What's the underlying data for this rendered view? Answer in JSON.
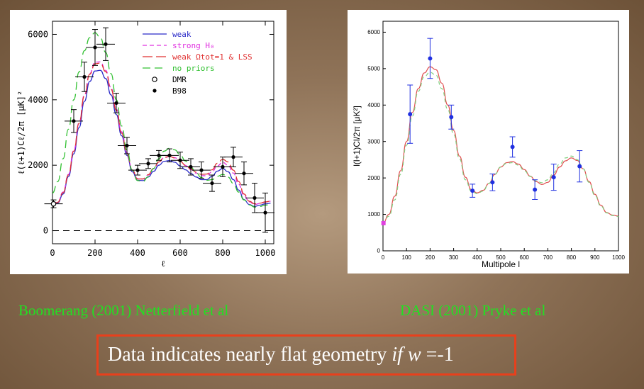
{
  "chart_data": [
    {
      "type": "line",
      "xlabel": "ℓ",
      "ylabel": "ℓ(ℓ+1)Cℓ/2π  [μK]²",
      "xlim": [
        0,
        1040
      ],
      "ylim": [
        -400,
        6400
      ],
      "xticks": [
        0,
        200,
        400,
        600,
        800,
        1000
      ],
      "yticks": [
        0,
        2000,
        4000,
        6000
      ],
      "grid": false,
      "legend_position": "top-right",
      "series": [
        {
          "name": "weak",
          "color": "#2b2bc8",
          "dash": "solid",
          "x": [
            0,
            25,
            50,
            75,
            100,
            125,
            150,
            175,
            200,
            225,
            250,
            275,
            300,
            325,
            350,
            375,
            400,
            425,
            450,
            475,
            500,
            525,
            550,
            575,
            600,
            625,
            650,
            675,
            700,
            725,
            750,
            775,
            800,
            825,
            850,
            875,
            900,
            925,
            950,
            975,
            1000,
            1025
          ],
          "y": [
            800,
            850,
            1120,
            1650,
            2350,
            3150,
            3950,
            4560,
            4880,
            4900,
            4650,
            4150,
            3550,
            2900,
            2300,
            1800,
            1540,
            1530,
            1640,
            1810,
            2000,
            2120,
            2140,
            2090,
            1980,
            1860,
            1750,
            1640,
            1560,
            1560,
            1660,
            1820,
            1900,
            1800,
            1560,
            1240,
            950,
            800,
            740,
            780,
            820,
            840
          ]
        },
        {
          "name": "strong H₀",
          "color": "#e030e0",
          "dash": "6,4",
          "x": [
            0,
            25,
            50,
            75,
            100,
            125,
            150,
            175,
            200,
            225,
            250,
            275,
            300,
            325,
            350,
            375,
            400,
            425,
            450,
            475,
            500,
            525,
            550,
            575,
            600,
            625,
            650,
            675,
            700,
            725,
            750,
            775,
            800,
            825,
            850,
            875,
            900,
            925,
            950,
            975,
            1000,
            1025
          ],
          "y": [
            800,
            880,
            1180,
            1720,
            2450,
            3300,
            4150,
            4800,
            5150,
            5160,
            4900,
            4370,
            3720,
            3020,
            2380,
            1860,
            1590,
            1580,
            1700,
            1890,
            2090,
            2230,
            2270,
            2230,
            2120,
            1990,
            1870,
            1760,
            1680,
            1680,
            1800,
            1980,
            2090,
            2000,
            1760,
            1420,
            1080,
            880,
            800,
            830,
            870,
            900
          ]
        },
        {
          "name": "weak Ωtot=1 & LSS",
          "color": "#e03030",
          "dash": "14,5",
          "x": [
            0,
            25,
            50,
            75,
            100,
            125,
            150,
            175,
            200,
            225,
            250,
            275,
            300,
            325,
            350,
            375,
            400,
            425,
            450,
            475,
            500,
            525,
            550,
            575,
            600,
            625,
            650,
            675,
            700,
            725,
            750,
            775,
            800,
            825,
            850,
            875,
            900,
            925,
            950,
            975,
            1000,
            1025
          ],
          "y": [
            800,
            870,
            1160,
            1700,
            2430,
            3280,
            4120,
            4780,
            5100,
            5120,
            4860,
            4320,
            3680,
            2980,
            2350,
            1850,
            1580,
            1580,
            1710,
            1900,
            2100,
            2240,
            2270,
            2220,
            2120,
            2000,
            1890,
            1790,
            1720,
            1730,
            1860,
            2060,
            2180,
            2100,
            1850,
            1500,
            1120,
            900,
            820,
            840,
            880,
            900
          ]
        },
        {
          "name": "no priors",
          "color": "#30c030",
          "dash": "11,6",
          "x": [
            0,
            25,
            50,
            75,
            100,
            125,
            150,
            175,
            200,
            225,
            250,
            275,
            300,
            325,
            350,
            375,
            400,
            425,
            450,
            475,
            500,
            525,
            550,
            575,
            600,
            625,
            650,
            675,
            700,
            725,
            750,
            775,
            800,
            825,
            850,
            875,
            900,
            925,
            950,
            975,
            1000,
            1025
          ],
          "y": [
            1150,
            1500,
            2200,
            3100,
            4000,
            4850,
            5500,
            5900,
            6050,
            5900,
            5450,
            4800,
            4000,
            3200,
            2450,
            1850,
            1530,
            1500,
            1650,
            1900,
            2200,
            2430,
            2520,
            2470,
            2320,
            2130,
            1940,
            1770,
            1620,
            1540,
            1560,
            1660,
            1720,
            1640,
            1440,
            1180,
            940,
            790,
            720,
            740,
            780,
            800
          ]
        }
      ],
      "points": [
        {
          "name": "DMR",
          "marker": "open-circle",
          "x": [
            5
          ],
          "y": [
            820
          ],
          "err": [
            120
          ]
        },
        {
          "name": "B98",
          "marker": "filled-circle",
          "x": [
            100,
            150,
            200,
            250,
            300,
            350,
            400,
            450,
            500,
            550,
            600,
            650,
            700,
            750,
            800,
            850,
            900,
            950,
            1000
          ],
          "y": [
            3350,
            4700,
            5600,
            5700,
            3900,
            2600,
            1850,
            2050,
            2300,
            2300,
            2150,
            1950,
            1850,
            1450,
            1950,
            2250,
            1750,
            1000,
            550
          ],
          "err": [
            350,
            450,
            550,
            500,
            300,
            250,
            150,
            150,
            150,
            200,
            250,
            250,
            250,
            250,
            300,
            300,
            350,
            450,
            600
          ]
        }
      ]
    },
    {
      "type": "line",
      "xlabel": "Multipole l",
      "ylabel": "l(l+1)Cl/2π  [μK²]",
      "xlim": [
        0,
        1000
      ],
      "ylim": [
        0,
        6300
      ],
      "xticks": [
        0,
        100,
        200,
        300,
        400,
        500,
        600,
        700,
        800,
        900,
        1000
      ],
      "yticks": [
        0,
        1000,
        2000,
        3000,
        4000,
        5000,
        6000
      ],
      "grid": false,
      "series": [
        {
          "color": "#e05050",
          "dash": "solid",
          "x": [
            0,
            25,
            50,
            75,
            100,
            125,
            150,
            175,
            200,
            225,
            250,
            275,
            300,
            325,
            350,
            375,
            400,
            425,
            450,
            475,
            500,
            525,
            550,
            575,
            600,
            625,
            650,
            675,
            700,
            725,
            750,
            775,
            800,
            825,
            850,
            875,
            900,
            925,
            950,
            975,
            1000
          ],
          "y": [
            750,
            1000,
            1500,
            2200,
            3000,
            3800,
            4450,
            4880,
            5050,
            4970,
            4600,
            4000,
            3300,
            2600,
            2020,
            1680,
            1590,
            1660,
            1850,
            2100,
            2300,
            2420,
            2450,
            2380,
            2230,
            2050,
            1900,
            1820,
            1880,
            2080,
            2300,
            2470,
            2550,
            2480,
            2250,
            1900,
            1550,
            1250,
            1050,
            980,
            950
          ]
        },
        {
          "color": "#80d080",
          "dash": "5,4",
          "x": [
            0,
            25,
            50,
            75,
            100,
            125,
            150,
            175,
            200,
            225,
            250,
            275,
            300,
            325,
            350,
            375,
            400,
            425,
            450,
            475,
            500,
            525,
            550,
            575,
            600,
            625,
            650,
            675,
            700,
            725,
            750,
            775,
            800,
            825,
            850,
            875,
            900,
            925,
            950,
            975,
            1000
          ],
          "y": [
            760,
            950,
            1400,
            2100,
            2900,
            3700,
            4380,
            4780,
            4900,
            4820,
            4450,
            3880,
            3200,
            2520,
            1950,
            1640,
            1570,
            1640,
            1850,
            2100,
            2300,
            2400,
            2420,
            2350,
            2200,
            2040,
            1920,
            1870,
            1950,
            2150,
            2380,
            2550,
            2600,
            2500,
            2250,
            1880,
            1520,
            1230,
            1040,
            970,
            940
          ]
        }
      ],
      "points": [
        {
          "marker": "filled-square",
          "color": "#e040e0",
          "x": [
            2
          ],
          "y": [
            760
          ],
          "err": [
            0
          ]
        },
        {
          "marker": "filled-circle",
          "color": "#2030e0",
          "x": [
            115,
            200,
            290,
            380,
            465,
            550,
            645,
            725,
            835
          ],
          "y": [
            3750,
            5280,
            3670,
            1650,
            1880,
            2850,
            1680,
            2020,
            2320
          ],
          "err": [
            800,
            550,
            330,
            180,
            230,
            280,
            270,
            360,
            430
          ]
        }
      ]
    }
  ],
  "captions": {
    "left": "Boomerang  (2001) Netterfield et al",
    "right": "DASI (2001) Pryke et al"
  },
  "conclusion": {
    "prefix": "Data indicates nearly flat geometry ",
    "if_word": "if",
    "w": "w",
    "suffix": " =-1"
  },
  "colors": {
    "caption": "#22e022",
    "box_border": "#e8401c"
  }
}
